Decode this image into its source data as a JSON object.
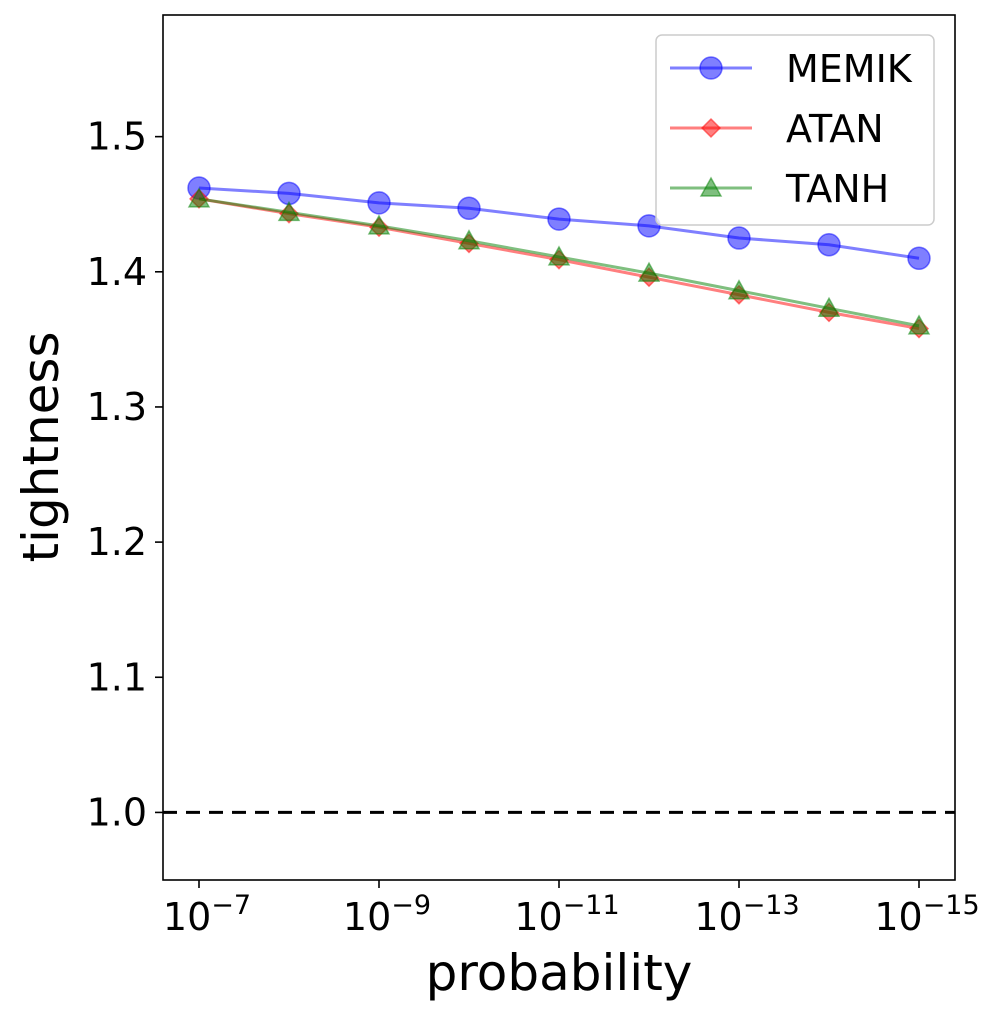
{
  "chart_data": {
    "type": "line",
    "title": "",
    "xlabel": "probability",
    "ylabel": "tightness",
    "x_exponents": [
      -7,
      -8,
      -9,
      -10,
      -11,
      -12,
      -13,
      -14,
      -15
    ],
    "x_ticks": [
      {
        "exponent": -7,
        "base": "10",
        "sup": "−7"
      },
      {
        "exponent": -9,
        "base": "10",
        "sup": "−9"
      },
      {
        "exponent": -11,
        "base": "10",
        "sup": "−11"
      },
      {
        "exponent": -13,
        "base": "10",
        "sup": "−13"
      },
      {
        "exponent": -15,
        "base": "10",
        "sup": "−15"
      }
    ],
    "xlim": [
      -6.6,
      -15.4
    ],
    "ylim": [
      0.95,
      1.59
    ],
    "y_ticks": [
      {
        "value": 1.0,
        "label": "1.0"
      },
      {
        "value": 1.1,
        "label": "1.1"
      },
      {
        "value": 1.2,
        "label": "1.2"
      },
      {
        "value": 1.3,
        "label": "1.3"
      },
      {
        "value": 1.4,
        "label": "1.4"
      },
      {
        "value": 1.5,
        "label": "1.5"
      }
    ],
    "reference_line": {
      "y": 1.0,
      "style": "dashed",
      "color": "#000000"
    },
    "legend_position": "top-right",
    "series": [
      {
        "name": "MEMIK",
        "color": "#0000ff",
        "marker": "circle",
        "values": [
          1.462,
          1.458,
          1.451,
          1.447,
          1.439,
          1.434,
          1.425,
          1.42,
          1.41
        ]
      },
      {
        "name": "ATAN",
        "color": "#ff0000",
        "marker": "diamond",
        "values": [
          1.454,
          1.443,
          1.433,
          1.421,
          1.409,
          1.396,
          1.383,
          1.37,
          1.358
        ]
      },
      {
        "name": "TANH",
        "color": "#008000",
        "marker": "triangle",
        "values": [
          1.454,
          1.444,
          1.434,
          1.423,
          1.411,
          1.399,
          1.386,
          1.373,
          1.36
        ]
      }
    ]
  }
}
